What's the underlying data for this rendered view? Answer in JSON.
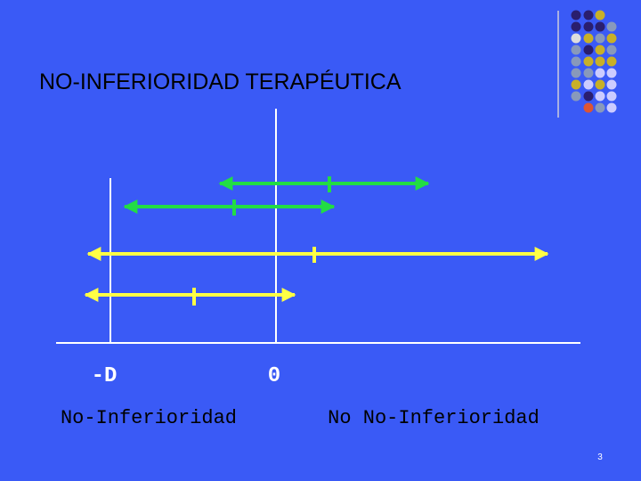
{
  "title": "NO-INFERIORIDAD TERAPÉUTICA",
  "axis_labels": {
    "margin": "-D",
    "zero": "0"
  },
  "regions": {
    "left": "No-Inferioridad",
    "right": "No No-Inferioridad"
  },
  "page_number": "3"
}
